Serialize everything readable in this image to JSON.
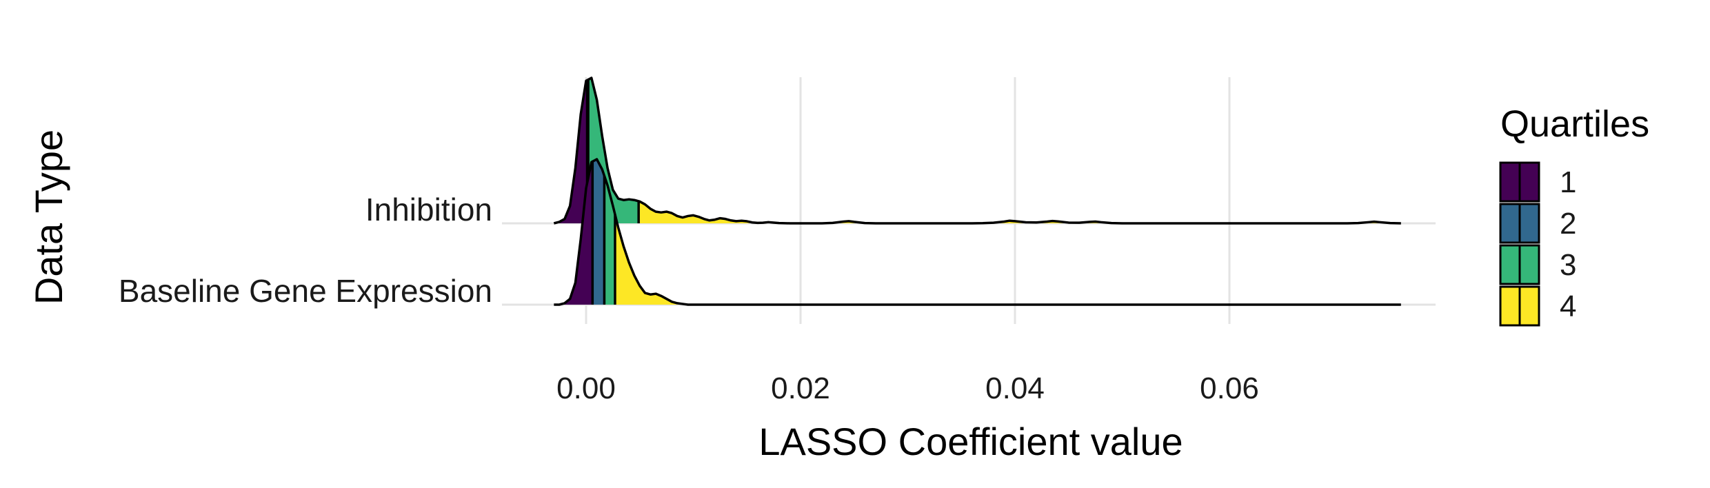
{
  "chart_data": {
    "type": "ridgeline",
    "xlabel": "LASSO Coefficient value",
    "ylabel": "Data Type",
    "xlim": [
      -0.0048,
      0.0796
    ],
    "xticks": [
      0.0,
      0.02,
      0.04,
      0.06
    ],
    "xtick_labels": [
      "0.00",
      "0.02",
      "0.04",
      "0.06"
    ],
    "grid": true,
    "legend": {
      "title": "Quartiles",
      "position": "right",
      "entries": [
        "1",
        "2",
        "3",
        "4"
      ]
    },
    "quartile_colors": [
      "#440154",
      "#31688e",
      "#35b779",
      "#fde725"
    ],
    "series": [
      {
        "name": "Baseline Gene Expression",
        "quartile_breaks": [
          0.0006,
          0.0017,
          0.0027
        ],
        "density": {
          "x": [
            -0.003,
            -0.0025,
            -0.002,
            -0.0015,
            -0.001,
            -0.0005,
            0.0,
            0.0005,
            0.001,
            0.0015,
            0.002,
            0.0025,
            0.003,
            0.0035,
            0.004,
            0.0045,
            0.005,
            0.0055,
            0.006,
            0.0065,
            0.007,
            0.0075,
            0.008,
            0.0085,
            0.009,
            0.0095,
            0.01,
            0.02,
            0.04,
            0.06,
            0.076
          ],
          "y": [
            0.0,
            0.0,
            0.01,
            0.04,
            0.15,
            0.45,
            0.8,
            0.98,
            1.0,
            0.93,
            0.82,
            0.68,
            0.53,
            0.4,
            0.29,
            0.2,
            0.13,
            0.08,
            0.07,
            0.075,
            0.06,
            0.04,
            0.02,
            0.01,
            0.005,
            0.0,
            0.0,
            0.0,
            0.0,
            0.0,
            0.0
          ]
        }
      },
      {
        "name": "Inhibition",
        "quartile_breaks": [
          0.0001,
          0.0002,
          0.0049
        ],
        "density": {
          "x": [
            -0.003,
            -0.0025,
            -0.002,
            -0.0015,
            -0.001,
            -0.0005,
            0.0,
            0.0005,
            0.001,
            0.0015,
            0.002,
            0.0025,
            0.003,
            0.0035,
            0.004,
            0.0045,
            0.005,
            0.0055,
            0.006,
            0.0065,
            0.007,
            0.0075,
            0.008,
            0.0085,
            0.009,
            0.0095,
            0.01,
            0.0105,
            0.011,
            0.0115,
            0.012,
            0.0125,
            0.013,
            0.0135,
            0.014,
            0.0145,
            0.015,
            0.0155,
            0.016,
            0.0165,
            0.017,
            0.0175,
            0.018,
            0.019,
            0.02,
            0.021,
            0.022,
            0.023,
            0.024,
            0.0245,
            0.025,
            0.026,
            0.027,
            0.028,
            0.03,
            0.032,
            0.034,
            0.036,
            0.037,
            0.038,
            0.039,
            0.0395,
            0.04,
            0.041,
            0.042,
            0.043,
            0.0435,
            0.044,
            0.045,
            0.046,
            0.047,
            0.0475,
            0.048,
            0.049,
            0.05,
            0.055,
            0.06,
            0.065,
            0.07,
            0.071,
            0.072,
            0.073,
            0.0735,
            0.074,
            0.075,
            0.076
          ],
          "y": [
            0.0,
            0.01,
            0.03,
            0.12,
            0.38,
            0.75,
            0.98,
            1.0,
            0.85,
            0.6,
            0.38,
            0.23,
            0.17,
            0.16,
            0.165,
            0.16,
            0.15,
            0.13,
            0.1,
            0.08,
            0.075,
            0.08,
            0.07,
            0.05,
            0.04,
            0.05,
            0.055,
            0.045,
            0.03,
            0.02,
            0.025,
            0.035,
            0.03,
            0.02,
            0.015,
            0.018,
            0.014,
            0.006,
            0.003,
            0.004,
            0.008,
            0.005,
            0.002,
            0.0,
            0.0,
            0.0,
            0.0,
            0.003,
            0.012,
            0.015,
            0.01,
            0.002,
            0.0,
            0.0,
            0.0,
            0.0,
            0.0,
            0.0,
            0.001,
            0.004,
            0.012,
            0.018,
            0.015,
            0.007,
            0.006,
            0.012,
            0.016,
            0.013,
            0.005,
            0.004,
            0.01,
            0.012,
            0.008,
            0.002,
            0.0,
            0.0,
            0.0,
            0.0,
            0.0,
            0.0,
            0.002,
            0.008,
            0.011,
            0.008,
            0.002,
            0.0
          ]
        }
      }
    ]
  }
}
